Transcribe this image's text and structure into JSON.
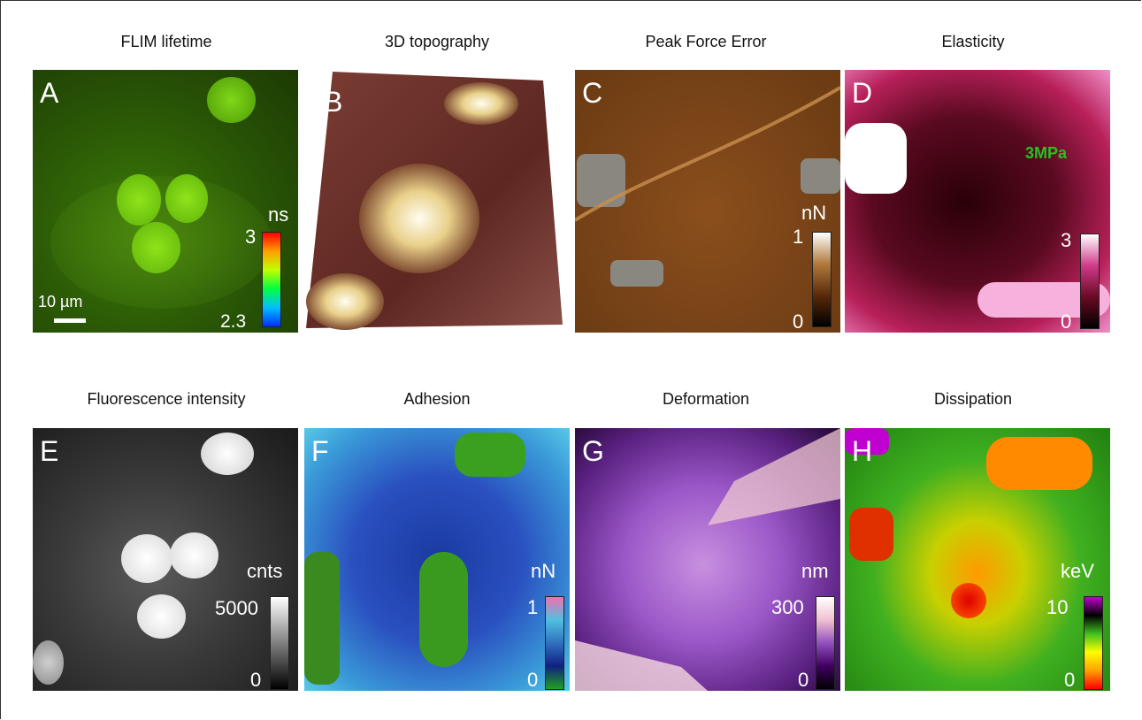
{
  "panels": [
    {
      "letter": "A",
      "title": "FLIM lifetime",
      "unit": "ns",
      "max": "3",
      "min": "2.3",
      "scale_label": "10 µm",
      "colorbar": "rainbow",
      "tone": "green"
    },
    {
      "letter": "B",
      "title": "3D topography",
      "tone": "brown-3d"
    },
    {
      "letter": "C",
      "title": "Peak Force Error",
      "unit": "nN",
      "max": "1",
      "min": "0",
      "colorbar": "copper",
      "tone": "copper"
    },
    {
      "letter": "D",
      "title": "Elasticity",
      "unit": "3MPa",
      "max": "3",
      "min": "0",
      "colorbar": "pink",
      "tone": "magenta"
    },
    {
      "letter": "E",
      "title": "Fluorescence intensity",
      "unit": "cnts",
      "max": "5000",
      "min": "0",
      "colorbar": "gray",
      "tone": "gray"
    },
    {
      "letter": "F",
      "title": "Adhesion",
      "unit": "nN",
      "max": "1",
      "min": "0",
      "colorbar": "green-blue-pink",
      "tone": "blue"
    },
    {
      "letter": "G",
      "title": "Deformation",
      "unit": "nm",
      "max": "300",
      "min": "0",
      "colorbar": "purple",
      "tone": "purple"
    },
    {
      "letter": "H",
      "title": "Dissipation",
      "unit": "keV",
      "max": "10",
      "min": "0",
      "colorbar": "red-yellow-green-magenta",
      "tone": "green-hot"
    }
  ],
  "colors": {
    "annotation": "#21c421"
  }
}
